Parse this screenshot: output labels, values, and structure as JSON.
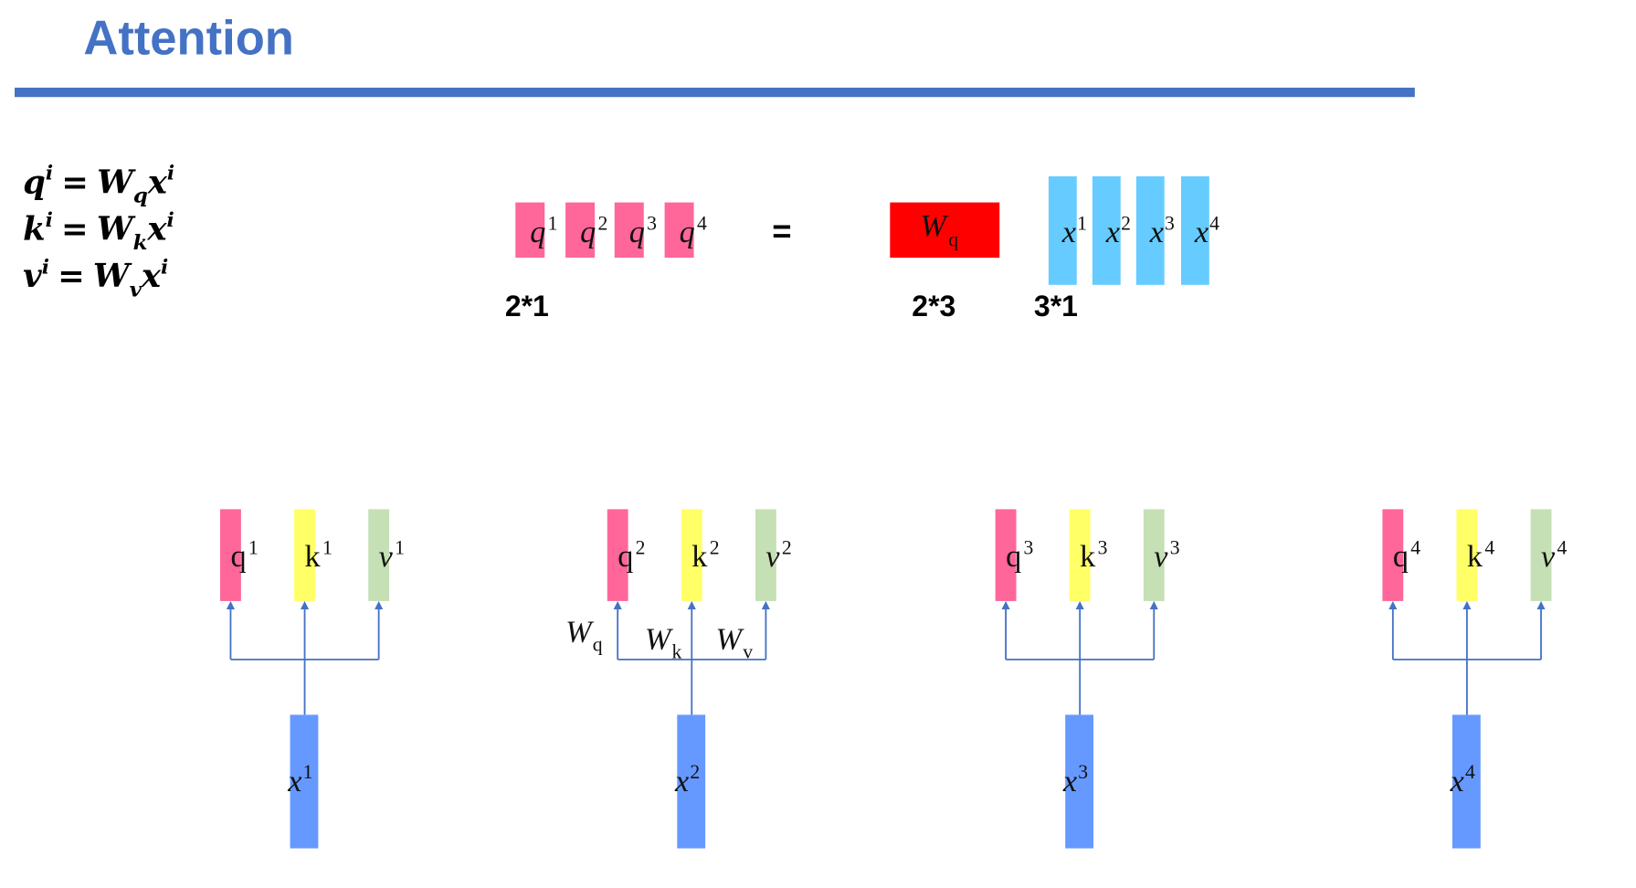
{
  "title": "Attention",
  "equations": [
    {
      "lhs": "q",
      "sup": "i",
      "eq": "=",
      "w": "W",
      "sub": "q",
      "x": "x",
      "xsup": "i"
    },
    {
      "lhs": "k",
      "sup": "i",
      "eq": "=",
      "w": "W",
      "sub": "k",
      "x": "x",
      "xsup": "i"
    },
    {
      "lhs": "v",
      "sup": "i",
      "eq": "=",
      "w": "W",
      "sub": "v",
      "x": "x",
      "xsup": "i"
    }
  ],
  "matrix_row": {
    "q_vectors": [
      {
        "base": "q",
        "sup": "1"
      },
      {
        "base": "q",
        "sup": "2"
      },
      {
        "base": "q",
        "sup": "3"
      },
      {
        "base": "q",
        "sup": "4"
      }
    ],
    "equals": "=",
    "weight": {
      "base": "W",
      "sub": "q"
    },
    "x_vectors": [
      {
        "base": "x",
        "sup": "1"
      },
      {
        "base": "x",
        "sup": "2"
      },
      {
        "base": "x",
        "sup": "3"
      },
      {
        "base": "x",
        "sup": "4"
      }
    ],
    "dims": {
      "q": "2*1",
      "w": "2*3",
      "x": "3*1"
    }
  },
  "groups": [
    {
      "q": "1",
      "k": "1",
      "v": "1",
      "x": "1"
    },
    {
      "q": "2",
      "k": "2",
      "v": "2",
      "x": "2",
      "weights": [
        {
          "base": "W",
          "sub": "q"
        },
        {
          "base": "W",
          "sub": "k"
        },
        {
          "base": "W",
          "sub": "v"
        }
      ]
    },
    {
      "q": "3",
      "k": "3",
      "v": "3",
      "x": "3"
    },
    {
      "q": "4",
      "k": "4",
      "v": "4",
      "x": "4"
    }
  ],
  "colors": {
    "title": "#4472C4",
    "query": "#FF6699",
    "key": "#FFFF66",
    "value": "#C5E0B4",
    "input": "#6699FF",
    "input_light": "#66CCFF",
    "weight": "#FF0000",
    "line": "#4472C4"
  }
}
